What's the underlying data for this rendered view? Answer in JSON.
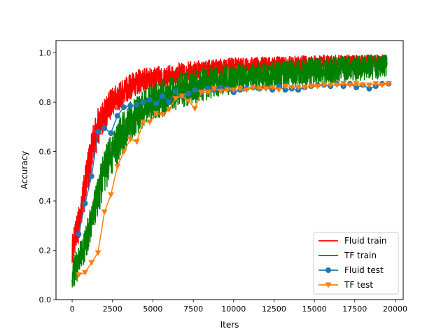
{
  "chart_data": {
    "type": "line",
    "title": "",
    "xlabel": "Iters",
    "ylabel": "Accuracy",
    "xlim": [
      -1000,
      20500
    ],
    "ylim": [
      0.0,
      1.05
    ],
    "xticks": [
      0,
      2500,
      5000,
      7500,
      10000,
      12500,
      15000,
      17500,
      20000
    ],
    "yticks": [
      0.0,
      0.2,
      0.4,
      0.6,
      0.8,
      1.0
    ],
    "grid": false,
    "legend_position": "lower-right",
    "series": [
      {
        "name": "Fluid train",
        "color": "#ff0000",
        "kind": "noisy-line",
        "x_range": [
          0,
          19500
        ],
        "x_step": 10,
        "mean_curve": {
          "x": [
            0,
            400,
            800,
            1200,
            1600,
            2000,
            2500,
            3000,
            3500,
            4000,
            5000,
            6000,
            7000,
            8000,
            9000,
            10000,
            12000,
            14000,
            16000,
            18000,
            19500
          ],
          "y": [
            0.2,
            0.3,
            0.45,
            0.6,
            0.7,
            0.75,
            0.8,
            0.83,
            0.86,
            0.88,
            0.9,
            0.91,
            0.925,
            0.93,
            0.94,
            0.945,
            0.95,
            0.955,
            0.96,
            0.96,
            0.965
          ]
        },
        "band_half_width": {
          "x": [
            0,
            1000,
            2500,
            5000,
            10000,
            19500
          ],
          "y": [
            0.06,
            0.09,
            0.06,
            0.045,
            0.035,
            0.03
          ]
        },
        "y_max": 0.995
      },
      {
        "name": "TF train",
        "color": "#008000",
        "kind": "noisy-line",
        "x_range": [
          0,
          19500
        ],
        "x_step": 10,
        "mean_curve": {
          "x": [
            0,
            400,
            800,
            1200,
            1600,
            2000,
            2500,
            3000,
            3500,
            4000,
            5000,
            6000,
            7000,
            8000,
            9000,
            10000,
            12000,
            14000,
            16000,
            18000,
            19500
          ],
          "y": [
            0.1,
            0.15,
            0.22,
            0.32,
            0.42,
            0.52,
            0.6,
            0.66,
            0.71,
            0.75,
            0.8,
            0.83,
            0.855,
            0.87,
            0.885,
            0.895,
            0.91,
            0.92,
            0.93,
            0.94,
            0.945
          ]
        },
        "band_half_width": {
          "x": [
            0,
            2000,
            5000,
            10000,
            19500
          ],
          "y": [
            0.06,
            0.09,
            0.08,
            0.06,
            0.05
          ]
        },
        "y_max": 0.99
      },
      {
        "name": "Fluid test",
        "color": "#1f77b4",
        "marker": "circle",
        "x": [
          400,
          800,
          1200,
          1600,
          2000,
          2400,
          2800,
          3200,
          3600,
          4000,
          4400,
          4800,
          5200,
          5600,
          6000,
          6400,
          6800,
          7200,
          7600,
          8000,
          8400,
          8800,
          9200,
          9600,
          10000,
          10400,
          10800,
          11200,
          11600,
          12000,
          12400,
          12800,
          13200,
          13600,
          14000,
          14400,
          14800,
          15200,
          15600,
          16000,
          16400,
          16800,
          17200,
          17600,
          18000,
          18400,
          18800,
          19200,
          19600
        ],
        "y": [
          0.265,
          0.39,
          0.5,
          0.68,
          0.695,
          0.675,
          0.745,
          0.78,
          0.785,
          0.79,
          0.8,
          0.81,
          0.795,
          0.825,
          0.8,
          0.845,
          0.825,
          0.835,
          0.85,
          0.84,
          0.855,
          0.85,
          0.86,
          0.855,
          0.84,
          0.85,
          0.855,
          0.86,
          0.855,
          0.86,
          0.85,
          0.865,
          0.85,
          0.855,
          0.85,
          0.86,
          0.865,
          0.87,
          0.87,
          0.865,
          0.875,
          0.865,
          0.875,
          0.86,
          0.87,
          0.855,
          0.865,
          0.875,
          0.875
        ]
      },
      {
        "name": "TF test",
        "color": "#ff7f0e",
        "marker": "triangle-down",
        "x": [
          400,
          800,
          1200,
          1600,
          2000,
          2400,
          2800,
          3200,
          3600,
          4000,
          4400,
          4800,
          5200,
          5600,
          6000,
          6400,
          6800,
          7200,
          7600,
          8000,
          8400,
          8800,
          9200,
          9600,
          10000,
          10400,
          10800,
          11200,
          11600,
          12000,
          12400,
          12800,
          13200,
          13600,
          14000,
          14400,
          14800,
          15200,
          15600,
          16000,
          16400,
          16800,
          17200,
          17600,
          18000,
          18400,
          18800,
          19200,
          19600
        ],
        "y": [
          0.1,
          0.11,
          0.15,
          0.19,
          0.355,
          0.425,
          0.54,
          0.6,
          0.65,
          0.64,
          0.72,
          0.72,
          0.755,
          0.75,
          0.77,
          0.815,
          0.825,
          0.805,
          0.775,
          0.84,
          0.84,
          0.855,
          0.845,
          0.85,
          0.85,
          0.855,
          0.85,
          0.86,
          0.855,
          0.855,
          0.86,
          0.85,
          0.865,
          0.86,
          0.86,
          0.86,
          0.865,
          0.865,
          0.87,
          0.87,
          0.87,
          0.875,
          0.87,
          0.875,
          0.87,
          0.87,
          0.875,
          0.87,
          0.875
        ]
      }
    ]
  }
}
